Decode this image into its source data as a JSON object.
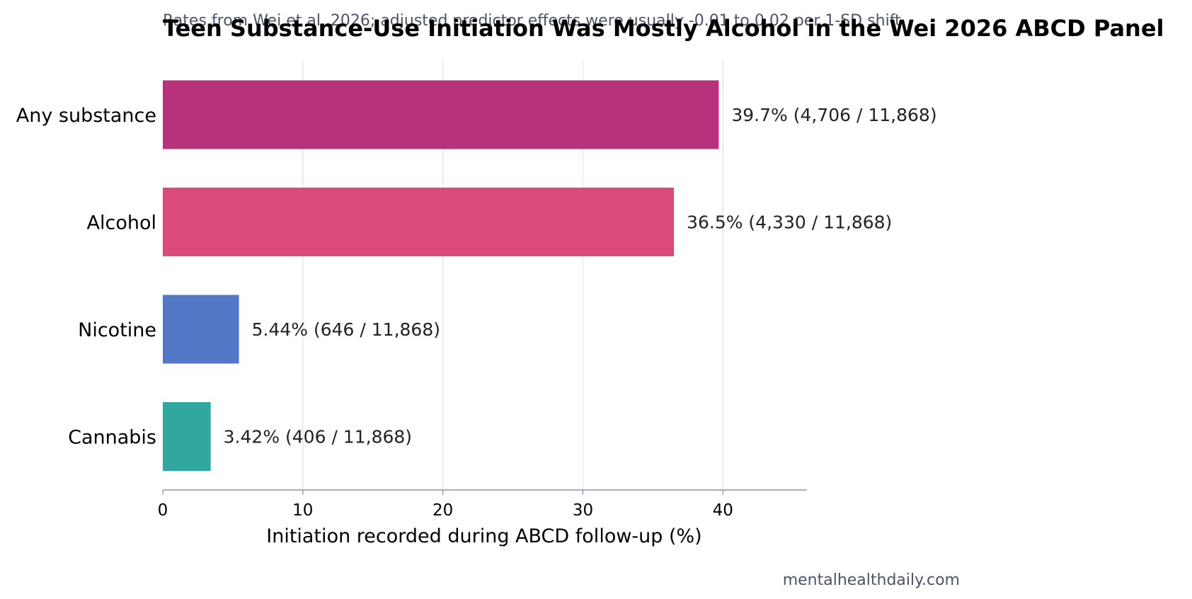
{
  "chart_data": {
    "type": "bar",
    "orientation": "horizontal",
    "title": "Teen Substance-Use Initiation Was Mostly Alcohol in the Wei 2026 ABCD Panel",
    "subtitle": "Rates from Wei et al. 2026; adjusted predictor effects were usually -0.01 to 0.02 per 1-SD shift",
    "xlabel": "Initiation recorded during ABCD follow-up (%)",
    "ylabel": "",
    "xlim": [
      0,
      46
    ],
    "xticks": [
      0,
      10,
      20,
      30,
      40
    ],
    "grid": "vertical",
    "legend": "none",
    "categories": [
      "Any substance",
      "Alcohol",
      "Nicotine",
      "Cannabis"
    ],
    "values": [
      39.7,
      36.5,
      5.44,
      3.42
    ],
    "value_labels": [
      "39.7%  (4,706 / 11,868)",
      "36.5%  (4,330 / 11,868)",
      "5.44%  (646 / 11,868)",
      "3.42%  (406 / 11,868)"
    ],
    "colors": [
      "#b8327b",
      "#db4a7d",
      "#5577c8",
      "#30a8a0"
    ],
    "source": "mentalhealthdaily.com"
  },
  "style": {
    "gridline_color": "#e3e3e7",
    "axis_color": "#8c97b0",
    "label_color": "#222222",
    "muted_color": "#4b5468",
    "title_color": "#000000"
  }
}
